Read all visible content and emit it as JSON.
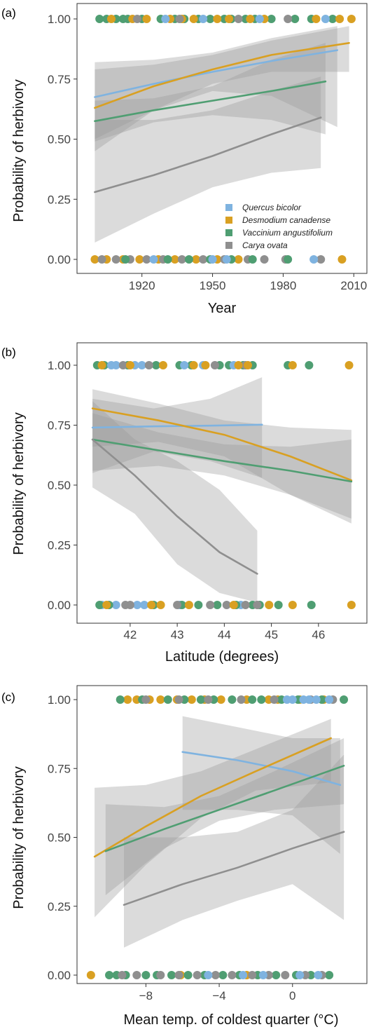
{
  "colors": {
    "Quercus bicolor": "#7fb3e0",
    "Desmodium canadense": "#d9a022",
    "Vaccinium angustifolium": "#4f9e72",
    "Carya ovata": "#8f8f8f",
    "band": "#999999"
  },
  "chart_data": [
    {
      "panel": "(a)",
      "type": "line",
      "xlabel": "Year",
      "ylabel": "Probability of herbivory",
      "xlim": [
        1896,
        2012
      ],
      "ylim": [
        0,
        1
      ],
      "xticks": [
        1920,
        1950,
        1980,
        2010
      ],
      "yticks": [
        0,
        0.25,
        0.5,
        0.75,
        1.0
      ],
      "ytick_labels": [
        "0.00",
        "0.25",
        "0.50",
        "0.75",
        "1.00"
      ],
      "xtick_labels": [
        "1920",
        "1950",
        "1980",
        "2010"
      ],
      "legend": [
        "Quercus bicolor",
        "Desmodium canadense",
        "Vaccinium angustifolium",
        "Carya ovata"
      ],
      "legend_position": "bottom-right",
      "series": [
        {
          "name": "Quercus bicolor",
          "x": [
            1900,
            1925,
            1950,
            1975,
            2003
          ],
          "y": [
            0.675,
            0.73,
            0.78,
            0.825,
            0.87
          ],
          "ci_lower": [
            0.5,
            0.62,
            0.7,
            0.68,
            0.55
          ],
          "ci_upper": [
            0.82,
            0.83,
            0.86,
            0.92,
            0.97
          ]
        },
        {
          "name": "Desmodium canadense",
          "x": [
            1900,
            1925,
            1950,
            1975,
            2008
          ],
          "y": [
            0.63,
            0.72,
            0.79,
            0.85,
            0.9
          ],
          "ci_lower": [
            0.45,
            0.62,
            0.73,
            0.78,
            0.78
          ],
          "ci_upper": [
            0.79,
            0.81,
            0.85,
            0.91,
            0.97
          ]
        },
        {
          "name": "Vaccinium angustifolium",
          "x": [
            1900,
            1925,
            1950,
            1975,
            1998
          ],
          "y": [
            0.575,
            0.62,
            0.66,
            0.7,
            0.74
          ],
          "ci_lower": [
            0.49,
            0.57,
            0.6,
            0.58,
            0.52
          ],
          "ci_upper": [
            0.66,
            0.67,
            0.72,
            0.83,
            0.9
          ]
        },
        {
          "name": "Carya ovata",
          "x": [
            1900,
            1925,
            1950,
            1975,
            1996
          ],
          "y": [
            0.28,
            0.35,
            0.43,
            0.52,
            0.59
          ],
          "ci_lower": [
            0.07,
            0.19,
            0.3,
            0.36,
            0.38
          ],
          "ci_upper": [
            0.58,
            0.58,
            0.62,
            0.7,
            0.76
          ]
        }
      ],
      "points": [
        {
          "name": "Vaccinium angustifolium",
          "y": 1,
          "x": [
            1902,
            1905,
            1909,
            1912,
            1914,
            1920,
            1928,
            1934,
            1938,
            1944,
            1949,
            1955,
            1958,
            1964,
            1968,
            1975,
            1985,
            1992,
            2001
          ]
        },
        {
          "name": "Desmodium canadense",
          "y": 1,
          "x": [
            1907,
            1916,
            1922,
            1932,
            1937,
            1942,
            1952,
            1957,
            1966,
            1972,
            1994,
            2004,
            2009
          ]
        },
        {
          "name": "Quercus bicolor",
          "y": 1,
          "x": [
            1930,
            1946,
            1970,
            1998
          ]
        },
        {
          "name": "Carya ovata",
          "y": 1,
          "x": [
            1918,
            1936,
            1961,
            1982
          ]
        },
        {
          "name": "Desmodium canadense",
          "y": 0,
          "x": [
            1900,
            1905,
            1912,
            1919,
            1927,
            1934,
            1943,
            1952,
            1961,
            2005
          ]
        },
        {
          "name": "Carya ovata",
          "y": 0,
          "x": [
            1903,
            1909,
            1915,
            1922,
            1929,
            1937,
            1946,
            1955,
            1965,
            1972,
            1981,
            1996
          ]
        },
        {
          "name": "Vaccinium angustifolium",
          "y": 0,
          "x": [
            1913,
            1931,
            1940,
            1949,
            1958,
            1967,
            1982
          ]
        },
        {
          "name": "Quercus bicolor",
          "y": 0,
          "x": [
            1925,
            1950,
            1956,
            1993
          ]
        }
      ]
    },
    {
      "panel": "(b)",
      "type": "line",
      "xlabel": "Latitude (degrees)",
      "ylabel": "Probability of herbivory",
      "xlim": [
        41.05,
        46.85
      ],
      "ylim": [
        0,
        1
      ],
      "xticks": [
        42,
        43,
        44,
        45,
        46
      ],
      "yticks": [
        0,
        0.25,
        0.5,
        0.75,
        1.0
      ],
      "ytick_labels": [
        "0.00",
        "0.25",
        "0.50",
        "0.75",
        "1.00"
      ],
      "xtick_labels": [
        "42",
        "43",
        "44",
        "45",
        "46"
      ],
      "series": [
        {
          "name": "Quercus bicolor",
          "x": [
            41.2,
            42.5,
            43.7,
            44.8
          ],
          "y": [
            0.74,
            0.745,
            0.748,
            0.752
          ],
          "ci_lower": [
            0.55,
            0.64,
            0.6,
            0.53
          ],
          "ci_upper": [
            0.86,
            0.82,
            0.86,
            0.95
          ]
        },
        {
          "name": "Desmodium canadense",
          "x": [
            41.2,
            42.6,
            44.0,
            45.4,
            46.7
          ],
          "y": [
            0.82,
            0.77,
            0.71,
            0.62,
            0.52
          ],
          "ci_lower": [
            0.66,
            0.68,
            0.62,
            0.46,
            0.34
          ],
          "ci_upper": [
            0.9,
            0.84,
            0.77,
            0.74,
            0.73
          ]
        },
        {
          "name": "Vaccinium angustifolium",
          "x": [
            41.2,
            42.6,
            44.0,
            45.4,
            46.7
          ],
          "y": [
            0.69,
            0.645,
            0.6,
            0.56,
            0.515
          ],
          "ci_lower": [
            0.56,
            0.58,
            0.54,
            0.46,
            0.36
          ],
          "ci_upper": [
            0.8,
            0.72,
            0.67,
            0.66,
            0.69
          ]
        },
        {
          "name": "Carya ovata",
          "x": [
            41.2,
            42.1,
            43.0,
            43.9,
            44.7
          ],
          "y": [
            0.69,
            0.54,
            0.37,
            0.22,
            0.13
          ],
          "ci_lower": [
            0.49,
            0.38,
            0.17,
            0.05,
            0.01
          ],
          "ci_upper": [
            0.85,
            0.69,
            0.6,
            0.48,
            0.31
          ]
        }
      ],
      "points": [
        {
          "name": "Vaccinium angustifolium",
          "y": 1,
          "x": [
            41.3,
            41.45,
            41.95,
            42.55,
            43.05,
            43.3,
            43.9,
            44.1,
            44.4,
            44.6,
            45.35,
            45.8
          ]
        },
        {
          "name": "Quercus bicolor",
          "y": 1,
          "x": [
            41.6,
            41.7,
            42.1,
            42.25,
            43.15,
            43.55,
            44.2
          ]
        },
        {
          "name": "Carya ovata",
          "y": 1,
          "x": [
            41.85,
            42.4,
            43.8,
            44.45
          ]
        },
        {
          "name": "Desmodium canadense",
          "y": 1,
          "x": [
            41.4,
            42.0,
            42.7,
            43.35,
            43.6,
            44.3,
            44.5,
            45.45,
            46.65
          ]
        },
        {
          "name": "Quercus bicolor",
          "y": 0,
          "x": [
            41.4,
            41.7,
            42.15,
            42.3,
            43.05,
            44.35
          ]
        },
        {
          "name": "Vaccinium angustifolium",
          "y": 0,
          "x": [
            41.35,
            41.55,
            42.5,
            43.1,
            43.45,
            43.85,
            44.25,
            44.6,
            44.75,
            45.15,
            45.85
          ]
        },
        {
          "name": "Carya ovata",
          "y": 0,
          "x": [
            41.9,
            42.0,
            43.0,
            43.7,
            44.05,
            44.45,
            44.7
          ]
        },
        {
          "name": "Desmodium canadense",
          "y": 0,
          "x": [
            41.5,
            42.45,
            42.65,
            43.25,
            44.2,
            44.95,
            45.45,
            46.7
          ]
        }
      ]
    },
    {
      "panel": "(c)",
      "type": "line",
      "xlabel": "Mean temp. of coldest quarter (°C)",
      "ylabel": "Probability of herbivory",
      "xlim": [
        -11.3,
        3.6
      ],
      "ylim": [
        0,
        1
      ],
      "xticks": [
        -8,
        -4,
        0
      ],
      "yticks": [
        0,
        0.25,
        0.5,
        0.75,
        1.0
      ],
      "ytick_labels": [
        "0.00",
        "0.25",
        "0.50",
        "0.75",
        "1.00"
      ],
      "xtick_labels": [
        "−8",
        "−4",
        "0"
      ],
      "series": [
        {
          "name": "Quercus bicolor",
          "x": [
            -6.0,
            -3.0,
            0.0,
            2.6
          ],
          "y": [
            0.81,
            0.78,
            0.74,
            0.69
          ],
          "ci_lower": [
            0.6,
            0.6,
            0.58,
            0.44
          ],
          "ci_upper": [
            0.94,
            0.9,
            0.86,
            0.86
          ]
        },
        {
          "name": "Desmodium canadense",
          "x": [
            -10.8,
            -8.0,
            -5.0,
            -2.0,
            2.1
          ],
          "y": [
            0.43,
            0.54,
            0.65,
            0.74,
            0.86
          ],
          "ci_lower": [
            0.21,
            0.4,
            0.57,
            0.67,
            0.7
          ],
          "ci_upper": [
            0.68,
            0.69,
            0.74,
            0.82,
            0.93
          ]
        },
        {
          "name": "Vaccinium angustifolium",
          "x": [
            -10.2,
            -7.0,
            -4.0,
            -1.0,
            2.8
          ],
          "y": [
            0.45,
            0.53,
            0.6,
            0.67,
            0.76
          ],
          "ci_lower": [
            0.29,
            0.46,
            0.56,
            0.6,
            0.62
          ],
          "ci_upper": [
            0.62,
            0.61,
            0.65,
            0.74,
            0.86
          ]
        },
        {
          "name": "Carya ovata",
          "x": [
            -9.2,
            -6.0,
            -3.0,
            0.0,
            2.8
          ],
          "y": [
            0.255,
            0.33,
            0.39,
            0.46,
            0.52
          ],
          "ci_lower": [
            0.1,
            0.2,
            0.27,
            0.33,
            0.2
          ],
          "ci_upper": [
            0.5,
            0.5,
            0.52,
            0.6,
            0.8
          ]
        }
      ],
      "points": [
        {
          "name": "Desmodium canadense",
          "y": 1,
          "x": [
            -9.0,
            -8.5,
            -7.8,
            -7.2,
            -6.3,
            -5.5,
            -4.8,
            -3.9,
            -2.5,
            -1.3,
            -0.8,
            0.4,
            1.7
          ]
        },
        {
          "name": "Vaccinium angustifolium",
          "y": 1,
          "x": [
            -9.4,
            -8.2,
            -6.8,
            -5.9,
            -5.0,
            -4.3,
            -3.3,
            -2.2,
            -1.7,
            -0.6,
            0.3,
            1.6,
            2.8
          ]
        },
        {
          "name": "Carya ovata",
          "y": 1,
          "x": [
            -8.0,
            -6.2,
            -4.6,
            -2.8,
            -1.0,
            1.0,
            2.2
          ]
        },
        {
          "name": "Quercus bicolor",
          "y": 1,
          "x": [
            -0.3,
            0.0,
            0.6,
            0.9,
            1.3,
            2.0
          ]
        },
        {
          "name": "Desmodium canadense",
          "y": 0,
          "x": [
            -11.0,
            -6.1,
            -2.5
          ]
        },
        {
          "name": "Vaccinium angustifolium",
          "y": 0,
          "x": [
            -10.0,
            -9.6,
            -9.1,
            -8.0,
            -7.4,
            -6.6,
            -5.7,
            -4.8,
            -3.8,
            -2.9,
            -1.9,
            -0.9,
            0.2,
            1.0,
            2.0
          ]
        },
        {
          "name": "Carya ovata",
          "y": 0,
          "x": [
            -9.3,
            -8.5,
            -7.2,
            -6.2,
            -5.2,
            -4.2,
            -3.3,
            -2.2,
            -1.3,
            -0.4,
            0.7,
            1.6
          ]
        },
        {
          "name": "Quercus bicolor",
          "y": 0,
          "x": [
            -4.6,
            -2.7,
            -1.6,
            0.4,
            1.4
          ]
        }
      ]
    }
  ]
}
